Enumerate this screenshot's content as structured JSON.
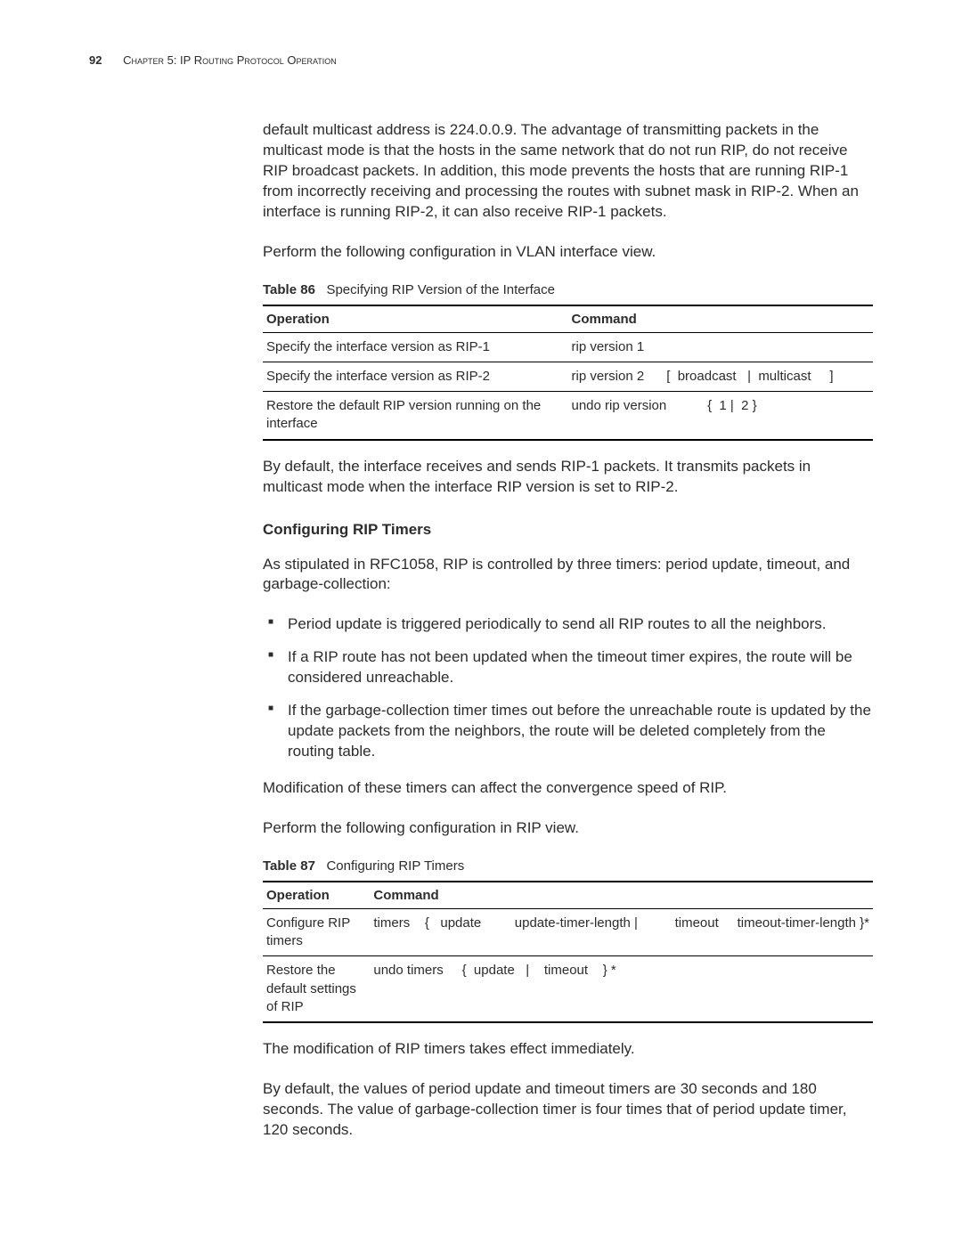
{
  "header": {
    "page_number": "92",
    "chapter_label": "Chapter 5: IP Routing Protocol Operation"
  },
  "intro_para": "default multicast address is 224.0.0.9. The advantage of transmitting packets in the multicast mode is that the hosts in the same network that do not run RIP, do not receive RIP broadcast packets. In addition, this mode prevents the hosts that are running RIP-1 from incorrectly receiving and processing the routes with subnet mask in RIP-2. When an interface is running RIP-2, it can also receive RIP-1 packets.",
  "perform_vlan": "Perform the following configuration in VLAN interface view.",
  "table86": {
    "caption_prefix": "Table 86",
    "caption_text": "Specifying RIP Version of the Interface",
    "headers": {
      "op": "Operation",
      "cmd": "Command"
    },
    "rows": [
      {
        "op": "Specify the interface version as RIP-1",
        "cmd": "rip version 1"
      },
      {
        "op": "Specify the interface version as RIP-2",
        "cmd": "rip version 2      [  broadcast   |  multicast     ]"
      },
      {
        "op": "Restore the default RIP version running on the interface",
        "cmd": "undo rip version           {  1 |  2 }"
      }
    ]
  },
  "after_t86": "By default, the interface receives and sends RIP-1 packets. It transmits packets in multicast mode when the interface RIP version is set to RIP-2.",
  "section_timers_head": "Configuring RIP Timers",
  "timers_intro": "As stipulated in RFC1058, RIP is controlled by three timers: period update, timeout, and garbage-collection:",
  "timers_bullets": [
    "Period update is triggered periodically to send all RIP routes to all the neighbors.",
    "If a RIP route has not been updated when the timeout timer expires, the route will be considered unreachable.",
    "If the garbage-collection timer times out before the unreachable route is updated by the update packets from the neighbors, the route will be deleted completely from the routing table."
  ],
  "timers_mod": "Modification of these timers can affect the convergence speed of RIP.",
  "perform_rip": "Perform the following configuration in RIP view.",
  "table87": {
    "caption_prefix": "Table 87",
    "caption_text": "Configuring RIP Timers",
    "headers": {
      "op": "Operation",
      "cmd": "Command"
    },
    "rows": [
      {
        "op": "Configure RIP timers",
        "cmd": "timers    {   update         update-timer-length |          timeout     timeout-timer-length }*"
      },
      {
        "op": "Restore the default settings of RIP",
        "cmd": "undo timers     {  update   |    timeout    } *"
      }
    ]
  },
  "after_t87_1": "The modification of RIP timers takes effect immediately.",
  "after_t87_2": "By default, the values of period update and timeout timers are 30 seconds and 180 seconds. The value of garbage-collection timer is four times that of period update timer, 120 seconds."
}
